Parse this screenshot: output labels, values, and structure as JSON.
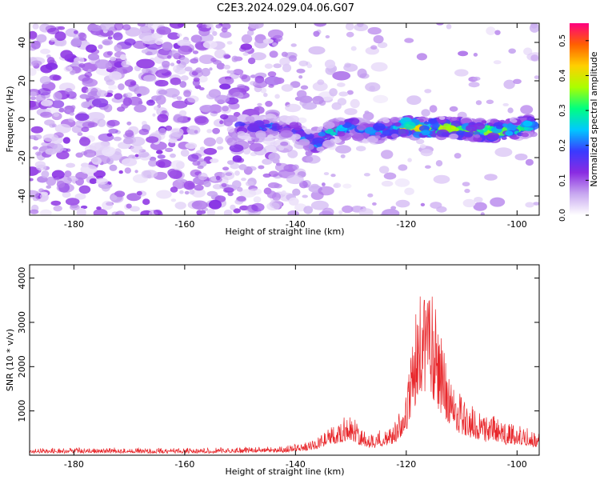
{
  "figure": {
    "title": "C2E3.2024.029.04.06.G07"
  },
  "chart_data": [
    {
      "type": "heatmap",
      "xlabel": "Height of straight line (km)",
      "ylabel": "Frequency (Hz)",
      "xlim": [
        -188,
        -96
      ],
      "ylim": [
        -50,
        50
      ],
      "x_ticks": [
        -180,
        -160,
        -140,
        -120,
        -100
      ],
      "y_ticks": [
        -40,
        -20,
        0,
        20,
        40
      ],
      "grid": false,
      "colorbar": {
        "label": "Normalized spectral amplitude",
        "range": [
          0,
          0.55
        ],
        "ticks": [
          0.0,
          0.1,
          0.2,
          0.3,
          0.4,
          0.5
        ],
        "colors": [
          "#ffffff",
          "#c8a8f0",
          "#8a2be2",
          "#3a3aff",
          "#00c8ff",
          "#00ff80",
          "#aaff00",
          "#ffd000",
          "#ff6000",
          "#ff0080"
        ]
      },
      "ridge": {
        "description": "signal band",
        "x": [
          -150,
          -145,
          -140,
          -137,
          -135,
          -133,
          -130,
          -127,
          -124,
          -120,
          -116,
          -112,
          -108,
          -104,
          -100,
          -97
        ],
        "freq": [
          -4,
          -4,
          -5,
          -13,
          -10,
          -6,
          -4,
          -7,
          -6,
          -4,
          -5,
          -4,
          -6,
          -6,
          -5,
          -3
        ],
        "amplitude": [
          0.18,
          0.2,
          0.15,
          0.3,
          0.35,
          0.32,
          0.28,
          0.22,
          0.3,
          0.5,
          0.4,
          0.45,
          0.35,
          0.45,
          0.35,
          0.3
        ]
      }
    },
    {
      "type": "line",
      "xlabel": "Height of straight line (km)",
      "ylabel": "SNR (10 * v/v)",
      "xlim": [
        -188,
        -96
      ],
      "ylim": [
        0,
        4300
      ],
      "x_ticks": [
        -180,
        -160,
        -140,
        -120,
        -100
      ],
      "y_ticks": [
        1000,
        2000,
        3000,
        4000
      ],
      "grid": false,
      "series": [
        {
          "color": "#e8262a",
          "envelope_x": [
            -188,
            -180,
            -170,
            -160,
            -150,
            -142,
            -138,
            -135,
            -132,
            -130,
            -128,
            -126,
            -124,
            -122,
            -120,
            -119,
            -118,
            -117,
            -116,
            -115,
            -114,
            -112,
            -110,
            -108,
            -106,
            -104,
            -102,
            -100,
            -98,
            -96
          ],
          "envelope_y": [
            150,
            160,
            160,
            150,
            170,
            200,
            300,
            500,
            800,
            1000,
            600,
            500,
            600,
            800,
            1500,
            2500,
            3600,
            3900,
            4300,
            3500,
            2800,
            1800,
            1300,
            1100,
            900,
            900,
            700,
            700,
            600,
            500
          ]
        }
      ]
    }
  ]
}
